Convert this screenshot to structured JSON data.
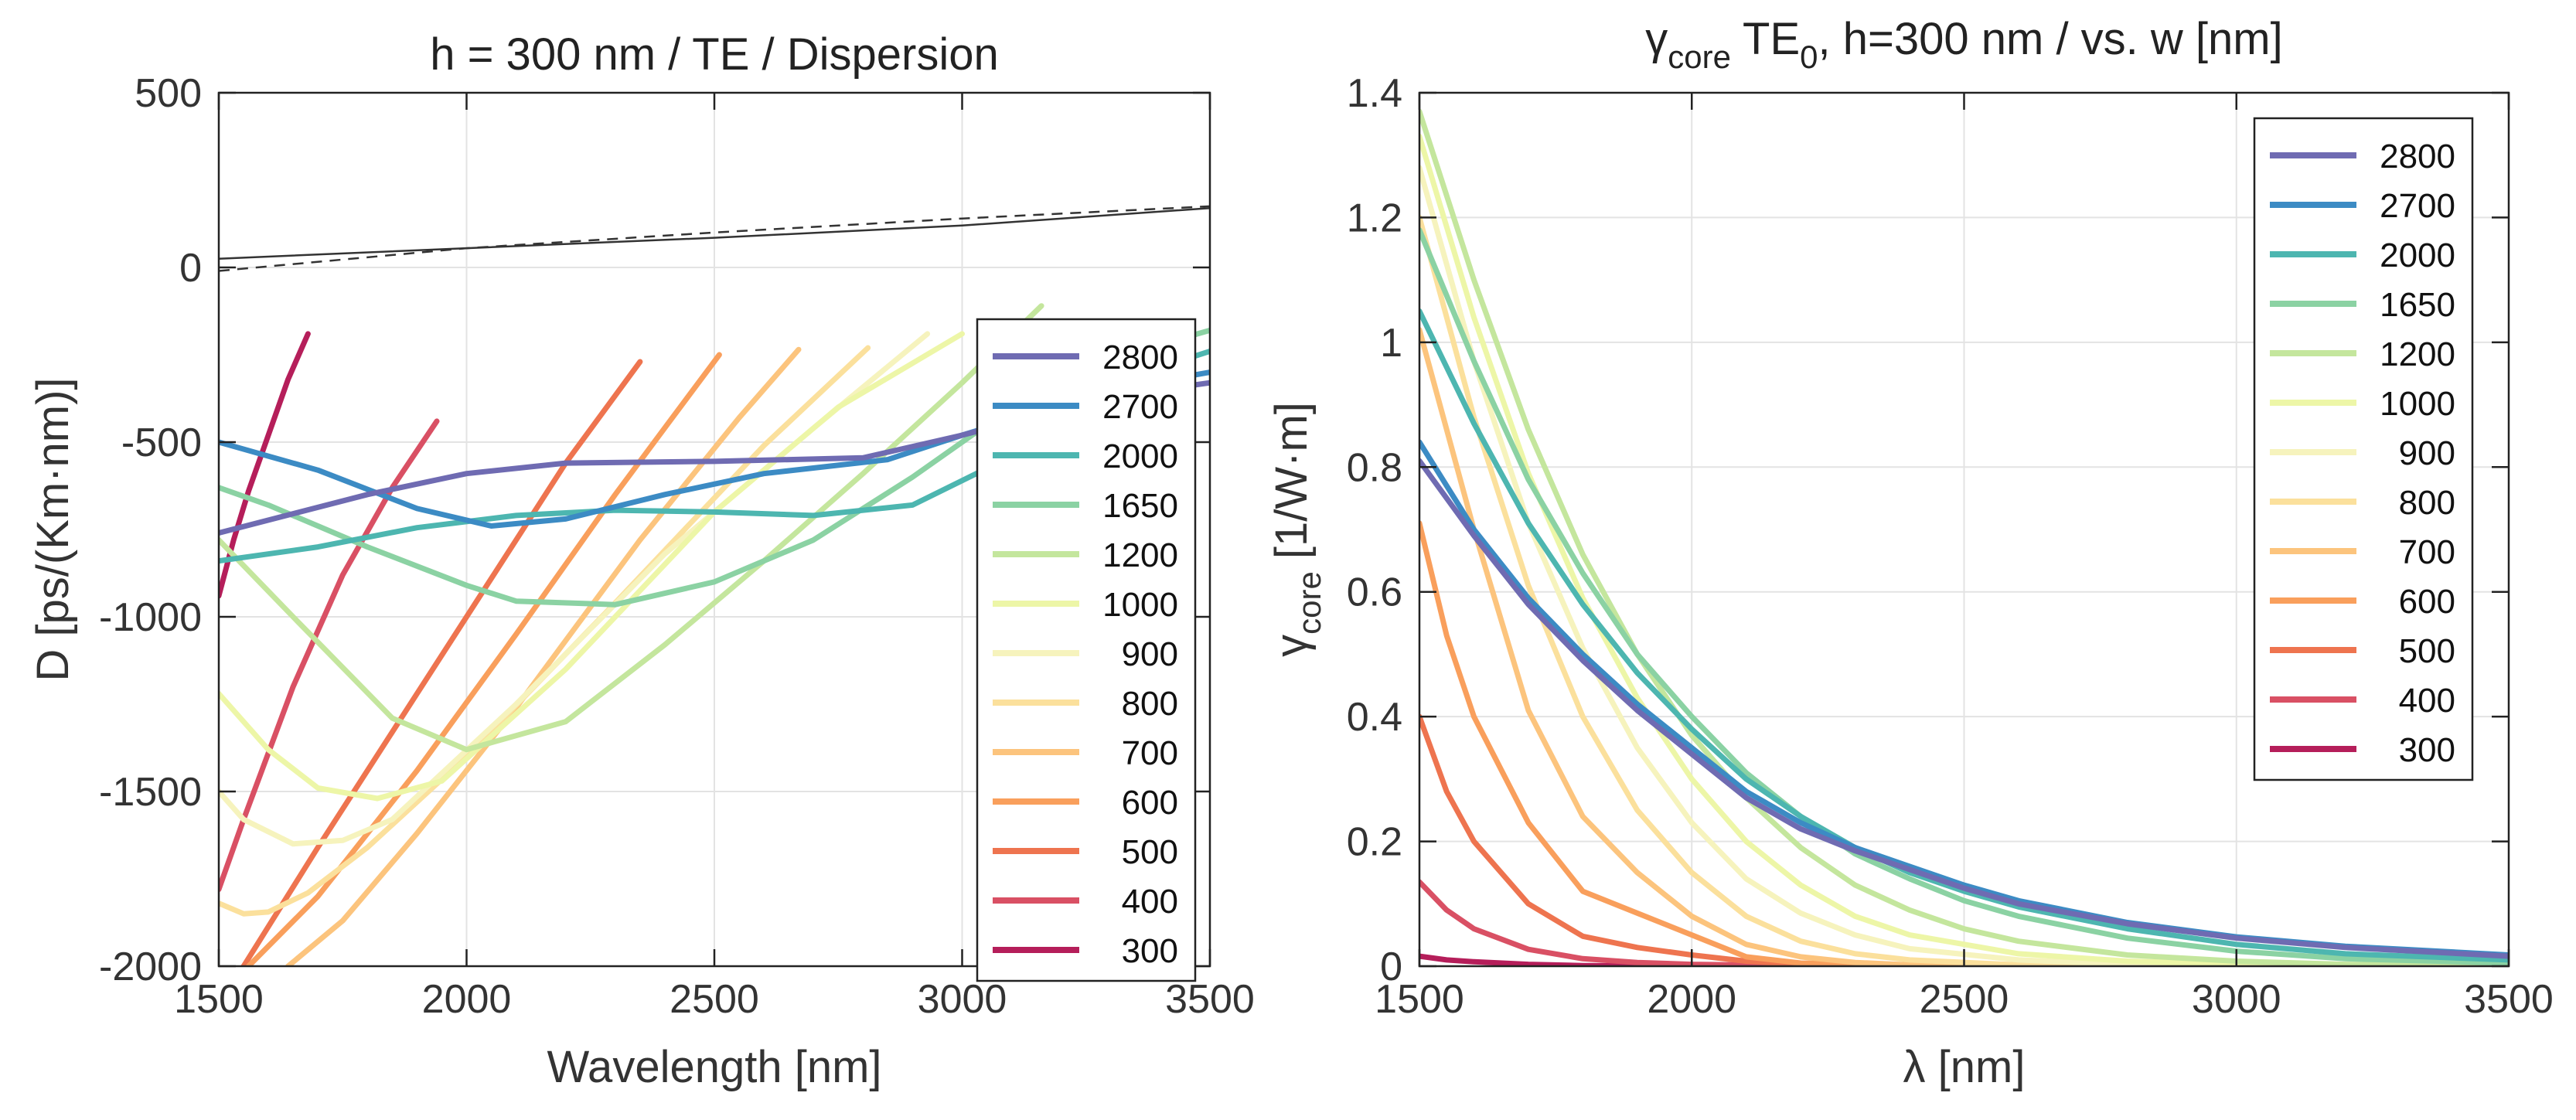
{
  "colors": {
    "2800": "#6f6bb2",
    "2700": "#3c8bc4",
    "2000": "#4db6b0",
    "1650": "#8bd2a3",
    "1200": "#c4e69d",
    "1000": "#edf6a7",
    "900": "#f6f3bd",
    "800": "#fbe09c",
    "700": "#fcc47d",
    "600": "#f99f5c",
    "500": "#ee744f",
    "400": "#d95064",
    "300": "#b51e5a"
  },
  "chart_data": [
    {
      "type": "line",
      "title": "h = 300 nm / TE / Dispersion",
      "xlabel": "Wavelength [nm]",
      "ylabel": "D [ps/(Km·nm)]",
      "xlim": [
        1500,
        3500
      ],
      "ylim": [
        -2000,
        500
      ],
      "xticks": [
        "1500",
        "2000",
        "2500",
        "3000",
        "3500"
      ],
      "yticks": [
        "500",
        "0",
        "-500",
        "-1000",
        "-1500",
        "-2000"
      ],
      "xtick_values": [
        1500,
        2000,
        2500,
        3000,
        3500
      ],
      "ytick_values": [
        500,
        0,
        -500,
        -1000,
        -1500,
        -2000
      ],
      "grid": true,
      "legend": {
        "position": "inside-right",
        "entries": [
          "2800",
          "2700",
          "2000",
          "1650",
          "1200",
          "1000",
          "900",
          "800",
          "700",
          "600",
          "500",
          "400",
          "300"
        ]
      },
      "reference_lines": [
        {
          "style": "solid",
          "x": [
            1500,
            2000,
            2500,
            3000,
            3500
          ],
          "y": [
            25,
            55,
            85,
            120,
            170
          ]
        },
        {
          "style": "dashed",
          "x": [
            1500,
            2000,
            2500,
            3000,
            3500
          ],
          "y": [
            -10,
            55,
            100,
            140,
            175
          ]
        }
      ],
      "series": [
        {
          "name": "2800",
          "x": [
            1500,
            1800,
            2000,
            2200,
            2500,
            2800,
            3000,
            3300,
            3500
          ],
          "y": [
            -760,
            -650,
            -590,
            -560,
            -555,
            -545,
            -480,
            -370,
            -330
          ]
        },
        {
          "name": "2700",
          "x": [
            1500,
            1700,
            1900,
            2050,
            2200,
            2400,
            2600,
            2850,
            3000,
            3300,
            3500
          ],
          "y": [
            -500,
            -580,
            -690,
            -740,
            -720,
            -650,
            -590,
            -550,
            -480,
            -350,
            -300
          ]
        },
        {
          "name": "2000",
          "x": [
            1500,
            1700,
            1900,
            2100,
            2300,
            2500,
            2700,
            2900,
            3100,
            3300,
            3500
          ],
          "y": [
            -840,
            -800,
            -745,
            -710,
            -695,
            -700,
            -710,
            -680,
            -540,
            -330,
            -240
          ]
        },
        {
          "name": "1650",
          "x": [
            1500,
            1600,
            1800,
            2000,
            2100,
            2300,
            2500,
            2700,
            2900,
            3100,
            3300,
            3500
          ],
          "y": [
            -630,
            -680,
            -800,
            -910,
            -955,
            -965,
            -900,
            -780,
            -600,
            -400,
            -260,
            -180
          ]
        },
        {
          "name": "1200",
          "x": [
            1500,
            1650,
            1850,
            2000,
            2200,
            2400,
            2600,
            2800,
            3000,
            3160
          ],
          "y": [
            -780,
            -1000,
            -1290,
            -1380,
            -1300,
            -1080,
            -840,
            -590,
            -330,
            -110
          ]
        },
        {
          "name": "1000",
          "x": [
            1500,
            1600,
            1700,
            1820,
            1950,
            2200,
            2500,
            2750,
            3000
          ],
          "y": [
            -1220,
            -1380,
            -1490,
            -1520,
            -1470,
            -1150,
            -700,
            -400,
            -190
          ]
        },
        {
          "name": "900",
          "x": [
            1500,
            1550,
            1650,
            1750,
            1850,
            2100,
            2400,
            2700,
            2930
          ],
          "y": [
            -1500,
            -1580,
            -1650,
            -1640,
            -1580,
            -1250,
            -820,
            -460,
            -190
          ]
        },
        {
          "name": "800",
          "x": [
            1500,
            1550,
            1600,
            1680,
            1800,
            2000,
            2300,
            2600,
            2810
          ],
          "y": [
            -1820,
            -1850,
            -1845,
            -1790,
            -1660,
            -1400,
            -960,
            -510,
            -230
          ]
        },
        {
          "name": "700",
          "x": [
            1640,
            1750,
            1900,
            2100,
            2350,
            2550,
            2670
          ],
          "y": [
            -2000,
            -1870,
            -1620,
            -1260,
            -780,
            -430,
            -235
          ]
        },
        {
          "name": "600",
          "x": [
            1560,
            1700,
            1900,
            2100,
            2300,
            2410,
            2510
          ],
          "y": [
            -2000,
            -1800,
            -1440,
            -1050,
            -650,
            -440,
            -250
          ]
        },
        {
          "name": "500",
          "x": [
            1500,
            1550,
            1700,
            1900,
            2100,
            2200,
            2350
          ],
          "y": [
            -2100,
            -2000,
            -1660,
            -1220,
            -780,
            -560,
            -270
          ]
        },
        {
          "name": "400",
          "x": [
            1500,
            1550,
            1650,
            1750,
            1850,
            1940
          ],
          "y": [
            -1780,
            -1580,
            -1200,
            -880,
            -630,
            -440
          ]
        },
        {
          "name": "300",
          "x": [
            1500,
            1530,
            1560,
            1600,
            1640,
            1680
          ],
          "y": [
            -940,
            -780,
            -640,
            -480,
            -320,
            -190
          ]
        }
      ]
    },
    {
      "type": "line",
      "title_base": "γ",
      "title_sub1": "core",
      "title_mid": " TE",
      "title_sub2": "0",
      "title_rest": ", h=300 nm / vs. w [nm]",
      "xlabel": "λ [nm]",
      "ylabel_base": "γ",
      "ylabel_sub": "core",
      "ylabel_rest": " [1/W·m]",
      "xlim": [
        1500,
        3500
      ],
      "ylim": [
        0,
        1.4
      ],
      "xticks": [
        "1500",
        "2000",
        "2500",
        "3000",
        "3500"
      ],
      "yticks": [
        "1.4",
        "1.2",
        "1",
        "0.8",
        "0.6",
        "0.4",
        "0.2",
        "0"
      ],
      "xtick_values": [
        1500,
        2000,
        2500,
        3000,
        3500
      ],
      "ytick_values": [
        1.4,
        1.2,
        1,
        0.8,
        0.6,
        0.4,
        0.2,
        0
      ],
      "grid": true,
      "legend": {
        "position": "top-right",
        "entries": [
          "2800",
          "2700",
          "2000",
          "1650",
          "1200",
          "1000",
          "900",
          "800",
          "700",
          "600",
          "500",
          "400",
          "300"
        ]
      },
      "series": [
        {
          "name": "2800",
          "x": [
            1500,
            1600,
            1700,
            1800,
            1900,
            2000,
            2100,
            2200,
            2300,
            2400,
            2500,
            2600,
            2800,
            3000,
            3200,
            3500
          ],
          "y": [
            0.81,
            0.69,
            0.58,
            0.49,
            0.41,
            0.34,
            0.27,
            0.22,
            0.185,
            0.155,
            0.125,
            0.1,
            0.068,
            0.045,
            0.03,
            0.016
          ]
        },
        {
          "name": "2700",
          "x": [
            1500,
            1600,
            1700,
            1800,
            1900,
            2000,
            2100,
            2200,
            2300,
            2400,
            2500,
            2600,
            2800,
            3000,
            3200,
            3500
          ],
          "y": [
            0.84,
            0.7,
            0.59,
            0.5,
            0.42,
            0.35,
            0.28,
            0.23,
            0.19,
            0.16,
            0.13,
            0.105,
            0.07,
            0.047,
            0.032,
            0.018
          ]
        },
        {
          "name": "2000",
          "x": [
            1500,
            1600,
            1700,
            1800,
            1900,
            2000,
            2100,
            2200,
            2300,
            2400,
            2500,
            2600,
            2800,
            3000,
            3200,
            3500
          ],
          "y": [
            1.05,
            0.87,
            0.71,
            0.58,
            0.47,
            0.38,
            0.3,
            0.24,
            0.19,
            0.15,
            0.12,
            0.095,
            0.06,
            0.035,
            0.02,
            0.01
          ]
        },
        {
          "name": "1650",
          "x": [
            1500,
            1600,
            1700,
            1800,
            1900,
            2000,
            2100,
            2200,
            2300,
            2400,
            2500,
            2600,
            2800,
            3000,
            3200,
            3500
          ],
          "y": [
            1.18,
            0.97,
            0.78,
            0.63,
            0.5,
            0.4,
            0.31,
            0.24,
            0.18,
            0.14,
            0.105,
            0.08,
            0.045,
            0.024,
            0.012,
            0.005
          ]
        },
        {
          "name": "1200",
          "x": [
            1500,
            1600,
            1700,
            1800,
            1900,
            2000,
            2100,
            2200,
            2300,
            2400,
            2500,
            2600,
            2800,
            3000,
            3200,
            3500
          ],
          "y": [
            1.37,
            1.1,
            0.86,
            0.66,
            0.5,
            0.37,
            0.27,
            0.19,
            0.13,
            0.09,
            0.06,
            0.04,
            0.018,
            0.008,
            0.003,
            0.001
          ]
        },
        {
          "name": "1000",
          "x": [
            1500,
            1600,
            1700,
            1800,
            1900,
            2000,
            2100,
            2200,
            2300,
            2400,
            2600,
            2800,
            3000,
            3500
          ],
          "y": [
            1.33,
            1.04,
            0.79,
            0.59,
            0.43,
            0.3,
            0.2,
            0.13,
            0.08,
            0.05,
            0.02,
            0.008,
            0.003,
            0.0
          ]
        },
        {
          "name": "900",
          "x": [
            1500,
            1600,
            1700,
            1800,
            1900,
            2000,
            2100,
            2200,
            2300,
            2400,
            2600,
            2800,
            3000,
            3500
          ],
          "y": [
            1.28,
            0.97,
            0.71,
            0.51,
            0.35,
            0.23,
            0.14,
            0.085,
            0.05,
            0.028,
            0.01,
            0.003,
            0.0,
            0.0
          ]
        },
        {
          "name": "800",
          "x": [
            1500,
            1600,
            1700,
            1800,
            1900,
            2000,
            2100,
            2200,
            2300,
            2400,
            2600,
            3000,
            3500
          ],
          "y": [
            1.2,
            0.88,
            0.61,
            0.4,
            0.25,
            0.15,
            0.08,
            0.04,
            0.02,
            0.01,
            0.002,
            0.0,
            0.0
          ]
        },
        {
          "name": "700",
          "x": [
            1500,
            1600,
            1700,
            1800,
            1900,
            2000,
            2100,
            2200,
            2300,
            2400,
            3000,
            3500
          ],
          "y": [
            1.02,
            0.7,
            0.41,
            0.24,
            0.15,
            0.08,
            0.035,
            0.015,
            0.006,
            0.002,
            0.0,
            0.0
          ]
        },
        {
          "name": "600",
          "x": [
            1500,
            1550,
            1600,
            1700,
            1800,
            1900,
            2000,
            2100,
            2200,
            2400,
            3000,
            3500
          ],
          "y": [
            0.71,
            0.53,
            0.4,
            0.23,
            0.12,
            0.085,
            0.05,
            0.015,
            0.005,
            0.001,
            0.0,
            0.0
          ]
        },
        {
          "name": "500",
          "x": [
            1500,
            1550,
            1600,
            1700,
            1800,
            1900,
            2000,
            2100,
            2200,
            2500,
            3000,
            3500
          ],
          "y": [
            0.4,
            0.28,
            0.2,
            0.1,
            0.048,
            0.03,
            0.018,
            0.008,
            0.003,
            0.0,
            0.0,
            0.0
          ]
        },
        {
          "name": "400",
          "x": [
            1500,
            1550,
            1600,
            1700,
            1800,
            1900,
            2000,
            2200,
            2500,
            3000,
            3500
          ],
          "y": [
            0.135,
            0.09,
            0.06,
            0.027,
            0.012,
            0.006,
            0.003,
            0.001,
            0.0,
            0.0,
            0.0
          ]
        },
        {
          "name": "300",
          "x": [
            1500,
            1550,
            1600,
            1700,
            1800,
            2000,
            2500,
            3000,
            3500
          ],
          "y": [
            0.016,
            0.01,
            0.007,
            0.003,
            0.001,
            0.0,
            0.0,
            0.0,
            0.0
          ]
        }
      ]
    }
  ]
}
